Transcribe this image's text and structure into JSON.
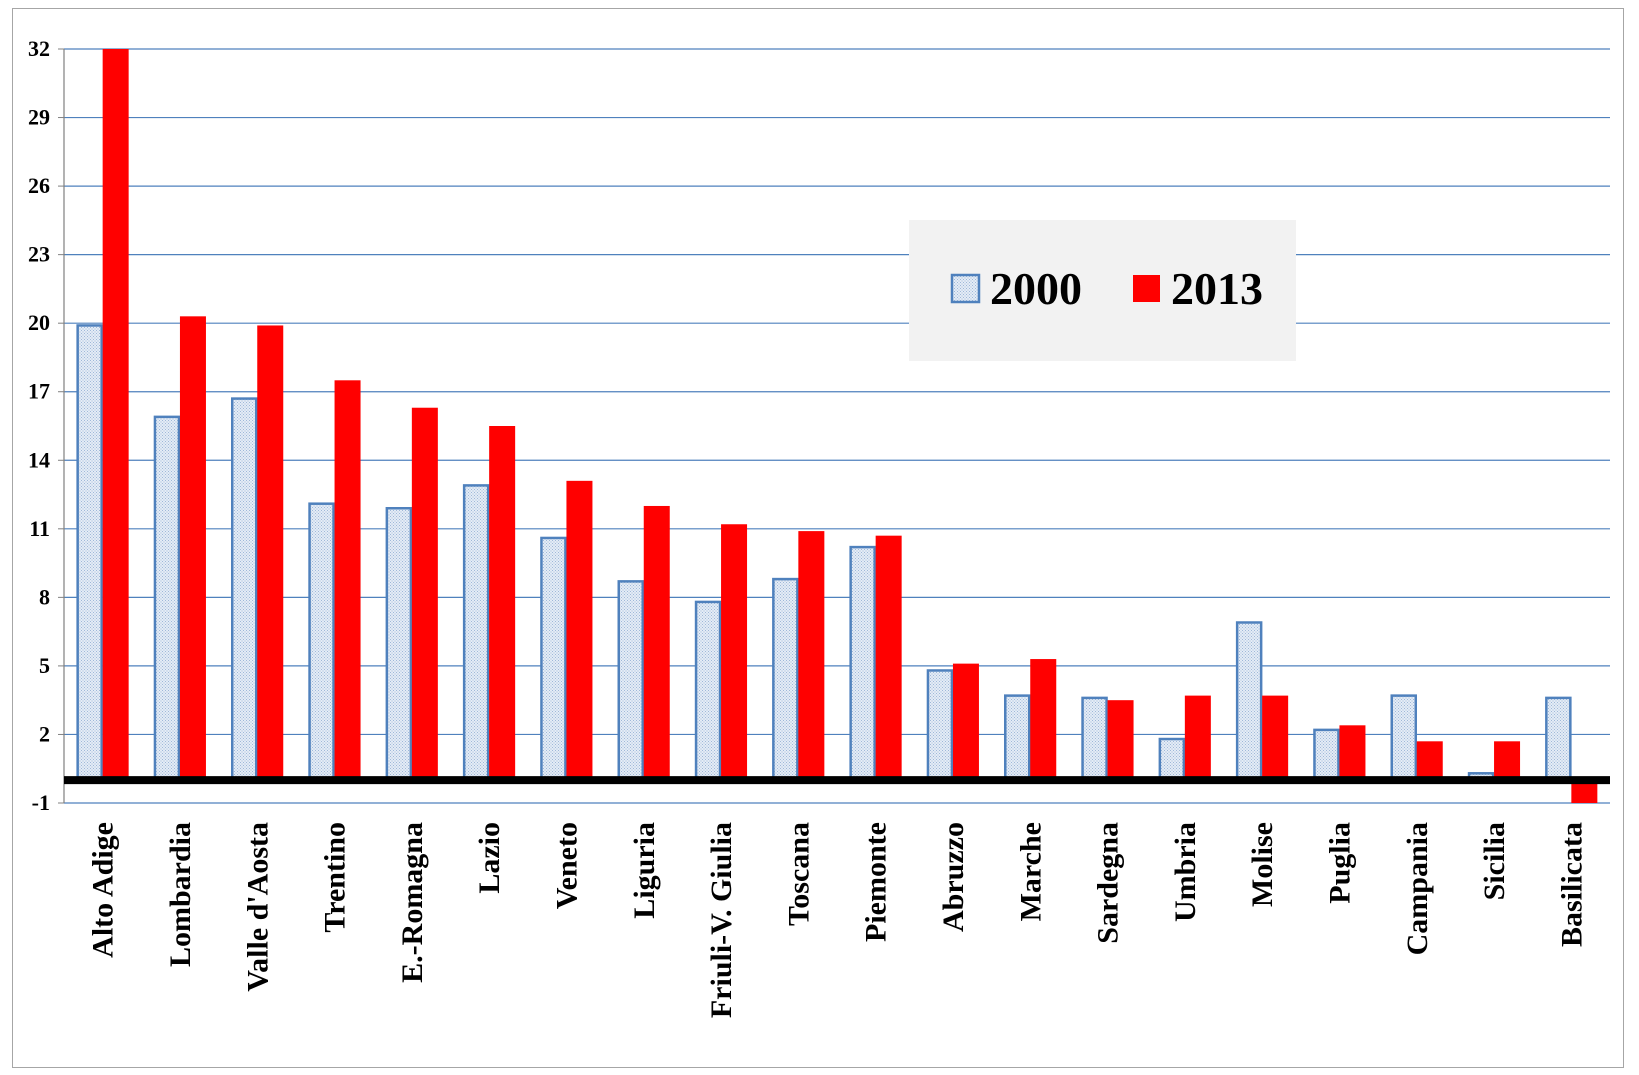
{
  "chart_data": {
    "type": "bar",
    "title": "",
    "xlabel": "",
    "ylabel": "",
    "ylim": [
      -1,
      32
    ],
    "yticks": [
      -1,
      2,
      5,
      8,
      11,
      14,
      17,
      20,
      23,
      26,
      29,
      32
    ],
    "grid": true,
    "legend_position": "top-right",
    "categories": [
      "Alto Adige",
      "Lombardia",
      "Valle d'Aosta",
      "Trentino",
      "E.-Romagna",
      "Lazio",
      "Veneto",
      "Liguria",
      "Friuli-V. Giulia",
      "Toscana",
      "Piemonte",
      "Abruzzo",
      "Marche",
      "Sardegna",
      "Umbria",
      "Molise",
      "Puglia",
      "Campania",
      "Sicilia",
      "Basilicata"
    ],
    "series": [
      {
        "name": "2000",
        "color": "#4f81bd",
        "fill": "#dce6f2",
        "values": [
          19.9,
          15.9,
          16.7,
          12.1,
          11.9,
          12.9,
          10.6,
          8.7,
          7.8,
          8.8,
          10.2,
          4.8,
          3.7,
          3.6,
          1.8,
          6.9,
          2.2,
          3.7,
          0.3,
          3.6
        ]
      },
      {
        "name": "2013",
        "color": "#ff0000",
        "values": [
          32.0,
          20.3,
          19.9,
          17.5,
          16.3,
          15.5,
          13.1,
          12.0,
          11.2,
          10.9,
          10.7,
          5.1,
          5.3,
          3.5,
          3.7,
          3.7,
          2.4,
          1.7,
          1.7,
          -1.0
        ]
      }
    ]
  },
  "colors": {
    "gridline": "#4f81bd",
    "baseline": "#000000",
    "legend_bg": "#f2f2f2",
    "frame_border": "#a6a6a6"
  }
}
